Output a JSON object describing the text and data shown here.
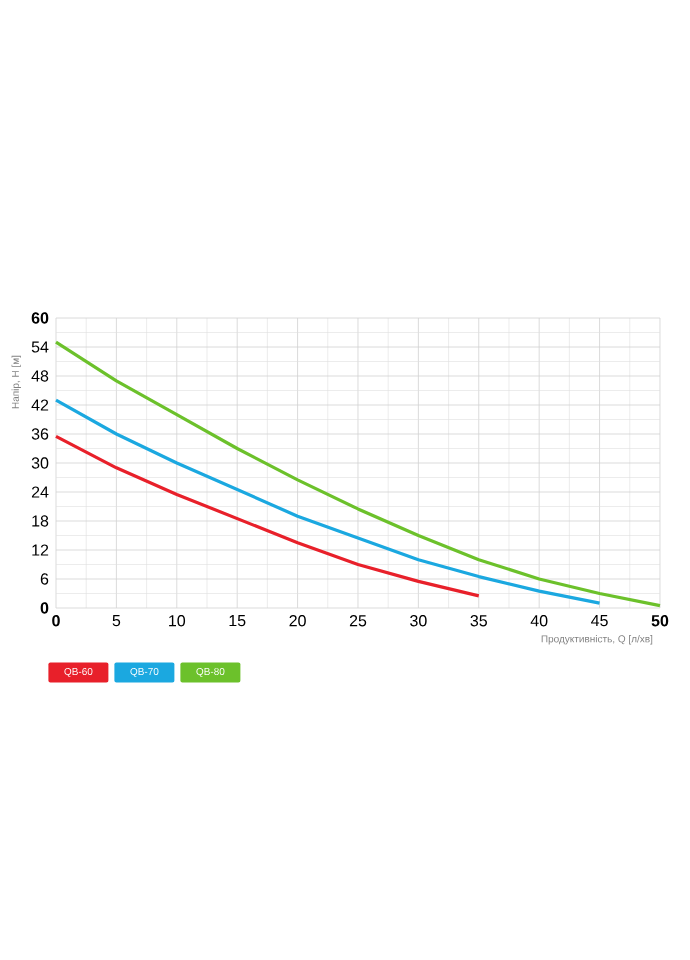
{
  "chart_data": {
    "type": "line",
    "xlabel": "Продуктивність, Q [л/хв]",
    "ylabel": "Напір, H [м]",
    "xlim": [
      0,
      50
    ],
    "ylim": [
      0,
      60
    ],
    "xticks": [
      0,
      5,
      10,
      15,
      20,
      25,
      30,
      35,
      40,
      45,
      50
    ],
    "yticks": [
      0,
      6,
      12,
      18,
      24,
      30,
      36,
      42,
      48,
      54,
      60
    ],
    "grid": true,
    "legend": "bottom left",
    "marker": "none",
    "line_style": "solid",
    "series": [
      {
        "name": "QB-60",
        "color": "#e8202a",
        "x": [
          0,
          5,
          10,
          15,
          20,
          25,
          30,
          35
        ],
        "values": [
          35.5,
          29,
          23.5,
          18.5,
          13.5,
          9,
          5.5,
          2.5
        ]
      },
      {
        "name": "QB-70",
        "color": "#1ba8e0",
        "x": [
          0,
          5,
          10,
          15,
          20,
          25,
          30,
          35,
          40,
          45
        ],
        "values": [
          43,
          36,
          30,
          24.5,
          19,
          14.5,
          10,
          6.5,
          3.5,
          1
        ]
      },
      {
        "name": "QB-80",
        "color": "#6cc12b",
        "x": [
          0,
          5,
          10,
          15,
          20,
          25,
          30,
          35,
          40,
          45,
          50
        ],
        "values": [
          55,
          47,
          40,
          33,
          26.5,
          20.5,
          15,
          10,
          6,
          3,
          0.5
        ]
      }
    ]
  }
}
